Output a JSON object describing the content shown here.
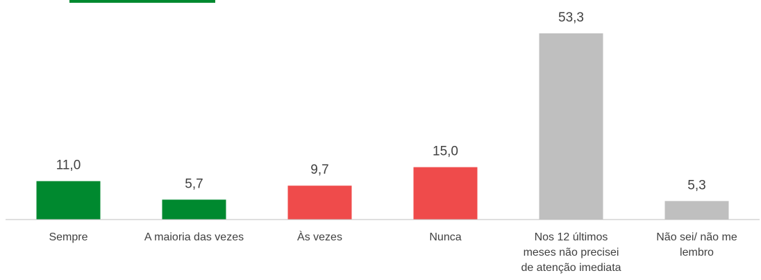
{
  "chart_data": {
    "type": "bar",
    "categories": [
      "Sempre",
      "A maioria das vezes",
      "Às vezes",
      "Nunca",
      "Nos 12 últimos meses não precisei de atenção imediata",
      "Não sei/ não me lembro"
    ],
    "values": [
      11.0,
      5.7,
      9.7,
      15.0,
      53.3,
      5.3
    ],
    "value_labels": [
      "11,0",
      "5,7",
      "9,7",
      "15,0",
      "53,3",
      "5,3"
    ],
    "colors": [
      "#00892f",
      "#00892f",
      "#ef4b4b",
      "#ef4b4b",
      "#bfbfbf",
      "#bfbfbf"
    ]
  }
}
